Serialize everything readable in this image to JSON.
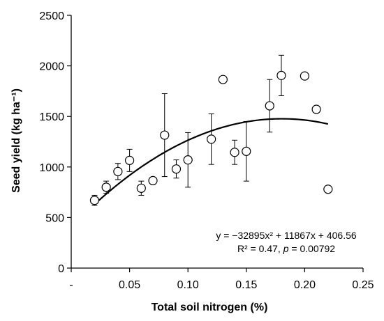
{
  "chart_data": {
    "type": "scatter",
    "title": "",
    "xlabel": "Total soil nitrogen (%)",
    "ylabel": "Seed yield (kg ha⁻¹)",
    "xlim": [
      0,
      0.25
    ],
    "ylim": [
      0,
      2500
    ],
    "grid": false,
    "xticks": [
      0,
      0.05,
      0.1,
      0.15,
      0.2,
      0.25
    ],
    "xtick_labels": [
      "-",
      "0.05",
      "0.10",
      "0.15",
      "0.20",
      "0.25"
    ],
    "yticks": [
      0,
      500,
      1000,
      1500,
      2000,
      2500
    ],
    "ytick_labels": [
      "0",
      "500",
      "1000",
      "1500",
      "2000",
      "2500"
    ],
    "points": [
      {
        "x": 0.02,
        "y": 670,
        "err": 50
      },
      {
        "x": 0.03,
        "y": 800,
        "err": 60
      },
      {
        "x": 0.04,
        "y": 955,
        "err": 80
      },
      {
        "x": 0.05,
        "y": 1065,
        "err": 110
      },
      {
        "x": 0.06,
        "y": 790,
        "err": 70
      },
      {
        "x": 0.07,
        "y": 865,
        "err": null
      },
      {
        "x": 0.08,
        "y": 1315,
        "err": 410
      },
      {
        "x": 0.09,
        "y": 980,
        "err": 90
      },
      {
        "x": 0.1,
        "y": 1070,
        "err": 270
      },
      {
        "x": 0.12,
        "y": 1275,
        "err": 250
      },
      {
        "x": 0.13,
        "y": 1865,
        "err": null
      },
      {
        "x": 0.14,
        "y": 1145,
        "err": 120
      },
      {
        "x": 0.15,
        "y": 1155,
        "err": 295
      },
      {
        "x": 0.17,
        "y": 1605,
        "err": 260
      },
      {
        "x": 0.18,
        "y": 1905,
        "err": 200
      },
      {
        "x": 0.2,
        "y": 1900,
        "err": null
      },
      {
        "x": 0.21,
        "y": 1570,
        "err": null
      },
      {
        "x": 0.22,
        "y": 780,
        "err": null
      }
    ],
    "fit": {
      "type": "quadratic",
      "coefficients": [
        -32895,
        11867,
        406.56
      ],
      "x_range": [
        0.02,
        0.22
      ]
    },
    "annotations": {
      "equation": "y = −32895x² + 11867x + 406.56",
      "stats_r2": "R² = 0.47,",
      "stats_p_symbol": "p",
      "stats_p_value": " = 0.00792"
    }
  }
}
